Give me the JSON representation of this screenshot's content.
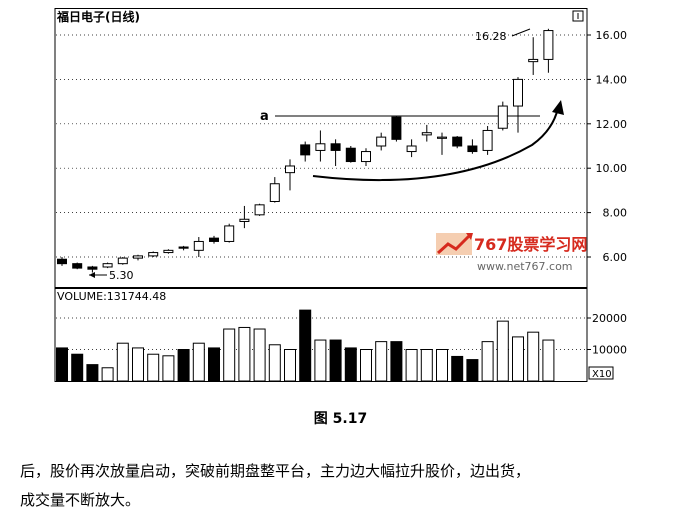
{
  "chart_data": {
    "type": "candlestick",
    "title": "福日电子(日线)",
    "y_axis": {
      "ticks": [
        "6.00",
        "8.00",
        "10.00",
        "12.00",
        "14.00",
        "16.00"
      ],
      "range": [
        4.85,
        17.0
      ]
    },
    "volume_axis": {
      "label": "VOLUME:131744.48",
      "ticks": [
        "20000",
        "10000"
      ],
      "range": [
        0,
        23000
      ],
      "unit": "X10"
    },
    "annotations": {
      "low_label": "5.30",
      "high_label": "16.28",
      "resistance_label": "a",
      "resistance_level": 12.35
    },
    "candles": [
      {
        "o": 5.9,
        "h": 6.0,
        "l": 5.6,
        "c": 5.7,
        "bear": true,
        "vol": 10500
      },
      {
        "o": 5.7,
        "h": 5.75,
        "l": 5.45,
        "c": 5.5,
        "bear": true,
        "vol": 8500
      },
      {
        "o": 5.55,
        "h": 5.6,
        "l": 5.3,
        "c": 5.45,
        "bear": true,
        "vol": 5200
      },
      {
        "o": 5.55,
        "h": 5.75,
        "l": 5.5,
        "c": 5.7,
        "bear": false,
        "vol": 4200
      },
      {
        "o": 5.7,
        "h": 6.0,
        "l": 5.65,
        "c": 5.95,
        "bear": false,
        "vol": 12000
      },
      {
        "o": 5.95,
        "h": 6.1,
        "l": 5.85,
        "c": 6.05,
        "bear": false,
        "vol": 10500
      },
      {
        "o": 6.05,
        "h": 6.25,
        "l": 6.0,
        "c": 6.2,
        "bear": false,
        "vol": 8500
      },
      {
        "o": 6.2,
        "h": 6.35,
        "l": 6.15,
        "c": 6.3,
        "bear": false,
        "vol": 8000
      },
      {
        "o": 6.4,
        "h": 6.5,
        "l": 6.3,
        "c": 6.45,
        "bear": true,
        "vol": 10000
      },
      {
        "o": 6.3,
        "h": 6.9,
        "l": 6.0,
        "c": 6.7,
        "bear": false,
        "vol": 12000
      },
      {
        "o": 6.85,
        "h": 6.95,
        "l": 6.6,
        "c": 6.7,
        "bear": true,
        "vol": 10500
      },
      {
        "o": 6.7,
        "h": 7.5,
        "l": 6.65,
        "c": 7.4,
        "bear": false,
        "vol": 16500
      },
      {
        "o": 7.6,
        "h": 8.3,
        "l": 7.3,
        "c": 7.7,
        "bear": false,
        "vol": 17000
      },
      {
        "o": 7.9,
        "h": 8.4,
        "l": 7.85,
        "c": 8.35,
        "bear": false,
        "vol": 16500
      },
      {
        "o": 8.5,
        "h": 9.6,
        "l": 8.45,
        "c": 9.3,
        "bear": false,
        "vol": 11500
      },
      {
        "o": 9.8,
        "h": 10.4,
        "l": 9.0,
        "c": 10.1,
        "bear": false,
        "vol": 10000
      },
      {
        "o": 11.05,
        "h": 11.2,
        "l": 10.3,
        "c": 10.6,
        "bear": true,
        "vol": 22500
      },
      {
        "o": 10.8,
        "h": 11.7,
        "l": 10.3,
        "c": 11.1,
        "bear": false,
        "vol": 13000
      },
      {
        "o": 11.1,
        "h": 11.3,
        "l": 10.1,
        "c": 10.8,
        "bear": true,
        "vol": 13000
      },
      {
        "o": 10.9,
        "h": 11.0,
        "l": 10.25,
        "c": 10.3,
        "bear": true,
        "vol": 10500
      },
      {
        "o": 10.3,
        "h": 10.9,
        "l": 10.1,
        "c": 10.75,
        "bear": false,
        "vol": 10000
      },
      {
        "o": 11.0,
        "h": 11.6,
        "l": 10.8,
        "c": 11.4,
        "bear": false,
        "vol": 12500
      },
      {
        "o": 12.3,
        "h": 12.35,
        "l": 11.2,
        "c": 11.3,
        "bear": true,
        "vol": 12500
      },
      {
        "o": 10.75,
        "h": 11.3,
        "l": 10.5,
        "c": 11.0,
        "bear": false,
        "vol": 10000
      },
      {
        "o": 11.5,
        "h": 11.95,
        "l": 11.2,
        "c": 11.6,
        "bear": false,
        "vol": 10000
      },
      {
        "o": 11.4,
        "h": 11.6,
        "l": 10.6,
        "c": 11.4,
        "bear": false,
        "vol": 10000
      },
      {
        "o": 11.4,
        "h": 11.45,
        "l": 10.9,
        "c": 11.0,
        "bear": true,
        "vol": 7800
      },
      {
        "o": 11.0,
        "h": 11.3,
        "l": 10.65,
        "c": 10.75,
        "bear": true,
        "vol": 6800
      },
      {
        "o": 10.8,
        "h": 11.9,
        "l": 10.6,
        "c": 11.7,
        "bear": false,
        "vol": 12500
      },
      {
        "o": 11.8,
        "h": 13.0,
        "l": 11.7,
        "c": 12.8,
        "bear": false,
        "vol": 19000
      },
      {
        "o": 12.8,
        "h": 14.1,
        "l": 11.6,
        "c": 14.0,
        "bear": false,
        "vol": 14000
      },
      {
        "o": 14.8,
        "h": 15.9,
        "l": 14.2,
        "c": 14.9,
        "bear": false,
        "vol": 15500
      },
      {
        "o": 14.9,
        "h": 16.28,
        "l": 14.3,
        "c": 16.2,
        "bear": false,
        "vol": 13000
      }
    ]
  },
  "watermark": {
    "brand": "767股票学习网",
    "url": "www.net767.com"
  },
  "figure_caption": "图 5.17",
  "body_text": [
    "后，股价再次放量启动，突破前期盘整平台，主力边大幅拉升股价，边出货，",
    "成交量不断放大。"
  ]
}
